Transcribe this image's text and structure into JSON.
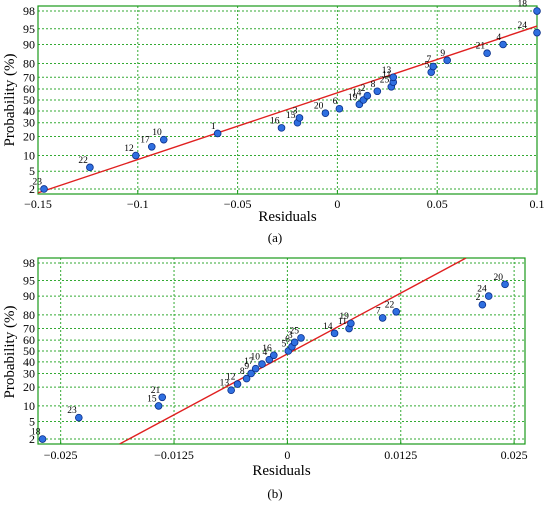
{
  "chart_data": [
    {
      "type": "scatter",
      "panel_label": "(a)",
      "xlabel": "Residuals",
      "ylabel": "Probability (%)",
      "xlim": [
        -0.15,
        0.1
      ],
      "ylim_percent": [
        1.5,
        98.5
      ],
      "y_scale": "normal-probability",
      "grid": true,
      "x_ticks": [
        {
          "v": -0.15,
          "label": "−0.15"
        },
        {
          "v": -0.1,
          "label": "−0.1"
        },
        {
          "v": -0.05,
          "label": "−0.05"
        },
        {
          "v": 0,
          "label": "0"
        },
        {
          "v": 0.05,
          "label": "0.05"
        },
        {
          "v": 0.1,
          "label": "0.1"
        }
      ],
      "y_ticks": [
        2,
        5,
        10,
        20,
        30,
        40,
        50,
        60,
        70,
        80,
        90,
        95,
        98
      ],
      "fit_line": [
        [
          -0.15,
          1.6
        ],
        [
          0.1,
          95.6
        ]
      ],
      "points": [
        {
          "id": "23",
          "x": -0.147,
          "p": 2
        },
        {
          "id": "22",
          "x": -0.124,
          "p": 6
        },
        {
          "id": "12",
          "x": -0.101,
          "p": 10
        },
        {
          "id": "17",
          "x": -0.093,
          "p": 14
        },
        {
          "id": "10",
          "x": -0.087,
          "p": 18
        },
        {
          "id": "1",
          "x": -0.06,
          "p": 22
        },
        {
          "id": "16",
          "x": -0.028,
          "p": 26
        },
        {
          "id": "15",
          "x": -0.02,
          "p": 30
        },
        {
          "id": "3",
          "x": -0.019,
          "p": 34
        },
        {
          "id": "20",
          "x": -0.006,
          "p": 38
        },
        {
          "id": "6",
          "x": 0.001,
          "p": 42
        },
        {
          "id": "19",
          "x": 0.011,
          "p": 46
        },
        {
          "id": "14",
          "x": 0.013,
          "p": 50
        },
        {
          "id": "2",
          "x": 0.015,
          "p": 54
        },
        {
          "id": "8",
          "x": 0.02,
          "p": 58
        },
        {
          "id": "25",
          "x": 0.027,
          "p": 62
        },
        {
          "id": "11",
          "x": 0.028,
          "p": 66
        },
        {
          "id": "13",
          "x": 0.028,
          "p": 70
        },
        {
          "id": "5",
          "x": 0.047,
          "p": 74
        },
        {
          "id": "7",
          "x": 0.048,
          "p": 78
        },
        {
          "id": "9",
          "x": 0.055,
          "p": 82
        },
        {
          "id": "21",
          "x": 0.075,
          "p": 86
        },
        {
          "id": "4",
          "x": 0.083,
          "p": 90
        },
        {
          "id": "24",
          "x": 0.1,
          "p": 94
        },
        {
          "id": "18",
          "x": 0.1,
          "p": 98
        }
      ]
    },
    {
      "type": "scatter",
      "panel_label": "(b)",
      "xlabel": "Residuals",
      "ylabel": "Probability (%)",
      "xlim": [
        -0.0275,
        0.0262
      ],
      "ylim_percent": [
        1.5,
        98.5
      ],
      "y_scale": "normal-probability",
      "grid": true,
      "x_ticks": [
        {
          "v": -0.025,
          "label": "−0.025"
        },
        {
          "v": -0.0125,
          "label": "−0.0125"
        },
        {
          "v": 0,
          "label": "0"
        },
        {
          "v": 0.0125,
          "label": "0.0125"
        },
        {
          "v": 0.025,
          "label": "0.025"
        }
      ],
      "y_ticks": [
        2,
        5,
        10,
        20,
        30,
        40,
        50,
        60,
        70,
        80,
        90,
        95,
        98
      ],
      "fit_line": [
        [
          -0.0185,
          1.5
        ],
        [
          0.0197,
          98.5
        ]
      ],
      "points": [
        {
          "id": "18",
          "x": -0.027,
          "p": 2
        },
        {
          "id": "23",
          "x": -0.023,
          "p": 6
        },
        {
          "id": "15",
          "x": -0.0142,
          "p": 10
        },
        {
          "id": "21",
          "x": -0.0138,
          "p": 14
        },
        {
          "id": "13",
          "x": -0.0062,
          "p": 18
        },
        {
          "id": "12",
          "x": -0.0055,
          "p": 22
        },
        {
          "id": "8",
          "x": -0.0045,
          "p": 26
        },
        {
          "id": "9",
          "x": -0.004,
          "p": 30
        },
        {
          "id": "17",
          "x": -0.0035,
          "p": 34
        },
        {
          "id": "10",
          "x": -0.0028,
          "p": 38
        },
        {
          "id": "4",
          "x": -0.002,
          "p": 42
        },
        {
          "id": "16",
          "x": -0.0015,
          "p": 46
        },
        {
          "id": "5",
          "x": 0.0001,
          "p": 50
        },
        {
          "id": "6",
          "x": 0.0005,
          "p": 54
        },
        {
          "id": "3",
          "x": 0.0008,
          "p": 58
        },
        {
          "id": "25",
          "x": 0.0015,
          "p": 62
        },
        {
          "id": "14",
          "x": 0.0052,
          "p": 66
        },
        {
          "id": "11",
          "x": 0.0068,
          "p": 70
        },
        {
          "id": "19",
          "x": 0.007,
          "p": 74
        },
        {
          "id": "7",
          "x": 0.0105,
          "p": 78
        },
        {
          "id": "22",
          "x": 0.012,
          "p": 82
        },
        {
          "id": "2",
          "x": 0.0215,
          "p": 86
        },
        {
          "id": "24",
          "x": 0.0222,
          "p": 90
        },
        {
          "id": "20",
          "x": 0.024,
          "p": 94
        }
      ]
    }
  ],
  "colors": {
    "grid": "#33aa33",
    "frame": "#1a9a1a",
    "fit_line": "#e02020",
    "point_fill": "#2f6fe0",
    "point_stroke": "#0b2f8a"
  }
}
